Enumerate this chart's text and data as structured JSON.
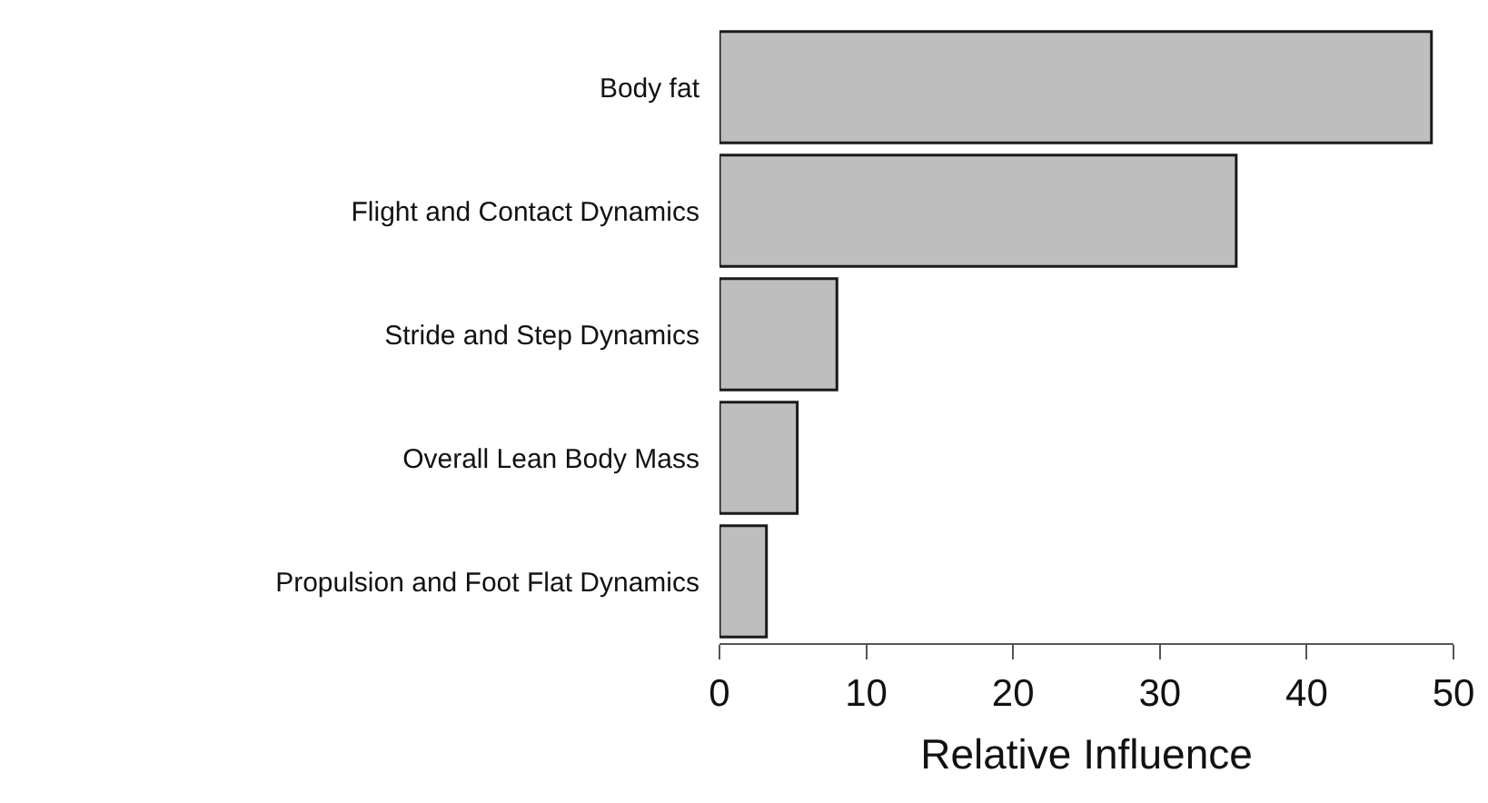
{
  "chart_data": {
    "type": "bar",
    "orientation": "horizontal",
    "xlabel": "Relative Influence",
    "categories": [
      "Body fat",
      "Flight and Contact Dynamics",
      "Stride and Step Dynamics",
      "Overall Lean Body Mass",
      "Propulsion and Foot Flat Dynamics"
    ],
    "values": [
      48.5,
      35.2,
      8.0,
      5.3,
      3.2
    ],
    "color": "#bebebe",
    "xlim": [
      0,
      50
    ],
    "xticks": [
      0,
      10,
      20,
      30,
      40,
      50
    ],
    "grid": false,
    "legend": false
  }
}
